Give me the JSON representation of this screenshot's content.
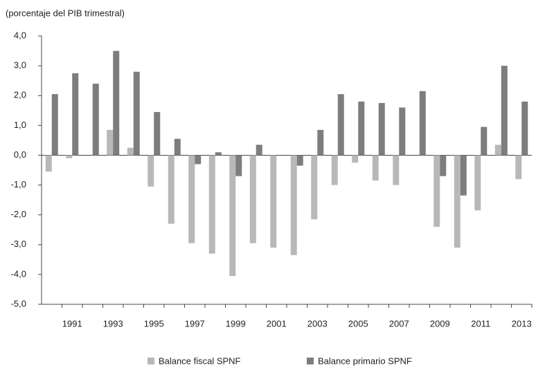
{
  "chart_data": {
    "type": "bar",
    "annotation": "(porcentaje del PIB trimestral)",
    "categories": [
      null,
      "1991",
      null,
      "1993",
      null,
      "1995",
      null,
      "1997",
      null,
      "1999",
      null,
      "2001",
      null,
      "2003",
      null,
      "2005",
      null,
      "2007",
      null,
      "2009",
      null,
      "2011",
      null,
      "2013"
    ],
    "series": [
      {
        "name": "Balance fiscal SPNF",
        "color": "#b8b8b8",
        "values": [
          -0.55,
          -0.1,
          0,
          0.85,
          0.25,
          -1.05,
          -2.3,
          -2.95,
          -3.3,
          -4.05,
          -2.95,
          -3.1,
          -3.35,
          -2.15,
          -1.0,
          -0.25,
          -0.85,
          -1.0,
          0,
          -2.4,
          -3.1,
          -1.85,
          0.35,
          -0.8
        ]
      },
      {
        "name": "Balance primario SPNF",
        "color": "#7d7d7d",
        "values": [
          2.05,
          2.75,
          2.4,
          3.5,
          2.8,
          1.45,
          0.55,
          -0.3,
          0.1,
          -0.7,
          0.35,
          0,
          -0.35,
          0.85,
          2.05,
          1.8,
          1.75,
          1.6,
          2.15,
          -0.7,
          -1.35,
          0.95,
          3.0,
          1.8
        ]
      }
    ],
    "ylim": [
      -5,
      4
    ],
    "yticks": [
      {
        "value": -5,
        "label": "-5,0"
      },
      {
        "value": -4,
        "label": "-4,0"
      },
      {
        "value": -3,
        "label": "-3,0"
      },
      {
        "value": -2,
        "label": "-2,0"
      },
      {
        "value": -1,
        "label": "-1,0"
      },
      {
        "value": 0,
        "label": "0,0"
      },
      {
        "value": 1,
        "label": "1,0"
      },
      {
        "value": 2,
        "label": "2,0"
      },
      {
        "value": 3,
        "label": "3,0"
      },
      {
        "value": 4,
        "label": "4,0"
      }
    ],
    "grid": false,
    "legend": "bottom"
  }
}
